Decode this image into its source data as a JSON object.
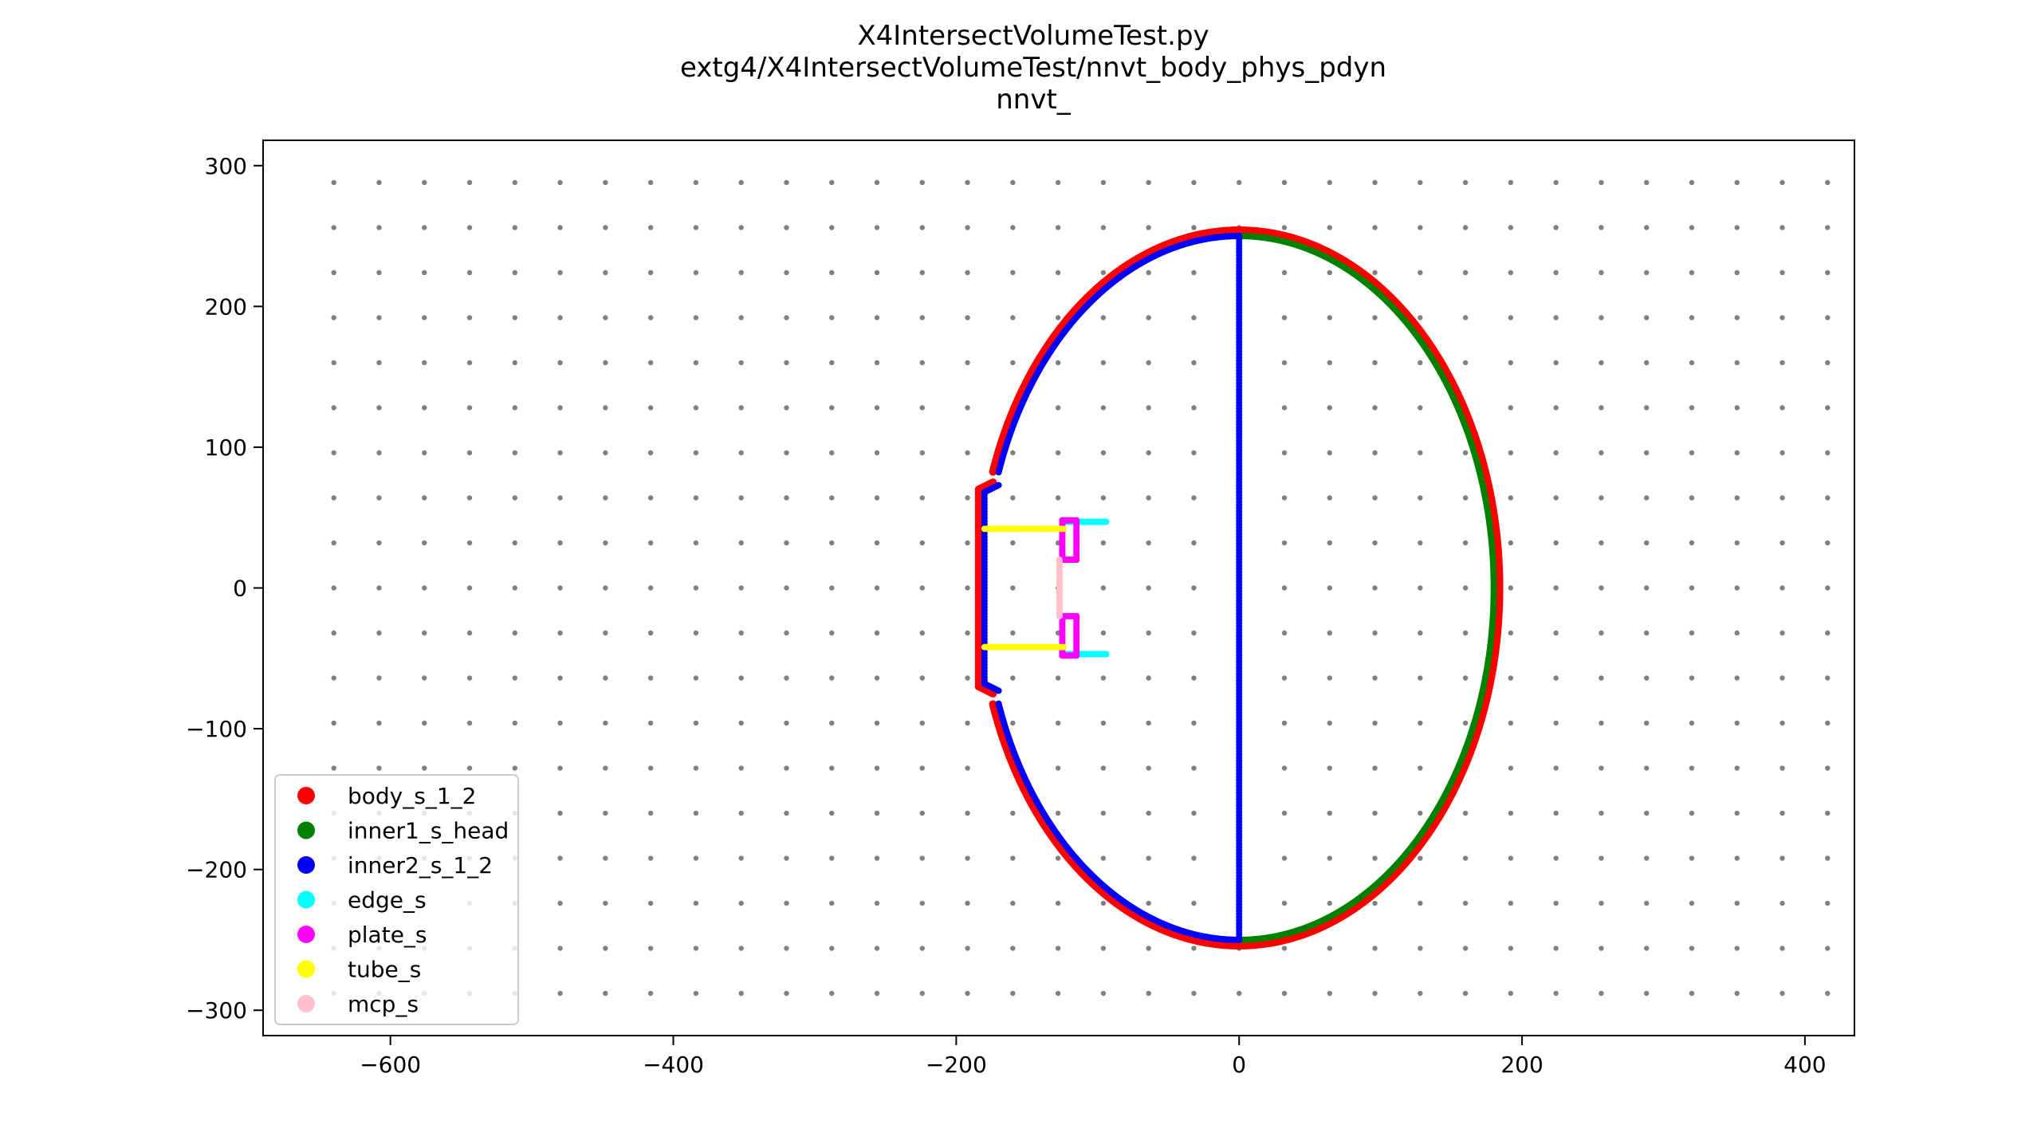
{
  "chart_data": {
    "type": "scatter",
    "title_lines": [
      "X4IntersectVolumeTest.py",
      "extg4/X4IntersectVolumeTest/nnvt_body_phys_pdyn",
      "nnvt_"
    ],
    "xlabel": "",
    "ylabel": "",
    "xlim": [
      -690,
      435
    ],
    "ylim": [
      -318,
      318
    ],
    "x_ticks": [
      -600,
      -400,
      -200,
      0,
      200,
      400
    ],
    "y_ticks": [
      300,
      200,
      100,
      0,
      -100,
      -200,
      -300
    ],
    "x_tick_labels": [
      "−600",
      "−400",
      "−200",
      "0",
      "200",
      "400"
    ],
    "y_tick_labels": [
      "300",
      "200",
      "100",
      "0",
      "−100",
      "−200",
      "−300"
    ],
    "grid": false,
    "legend_position": "lower left",
    "background_points": {
      "color": "#808080",
      "x_start": -640,
      "x_step": 32,
      "x_count": 35,
      "y_start": -288,
      "y_step": 32,
      "y_count": 19
    },
    "series": [
      {
        "name": "body_s_1_2",
        "color": "#ff0000",
        "shape": "body_outline",
        "semi_x": 184,
        "semi_y": 254,
        "neck_x": -184,
        "neck_y": 70,
        "neck_shoulder_x": -174,
        "neck_shoulder_y": 75
      },
      {
        "name": "inner1_s_head",
        "color": "#008000",
        "shape": "right_half_ellipse",
        "semi_x": 180,
        "semi_y": 250
      },
      {
        "name": "inner2_s_1_2",
        "color": "#0000ff",
        "shape": "left_outline_and_axis",
        "semi_x": 180,
        "semi_y": 250,
        "neck_x": -180,
        "neck_y": 68,
        "neck_shoulder_x": -170,
        "neck_shoulder_y": 73
      },
      {
        "name": "edge_s",
        "color": "#00ffff",
        "shape": "segments",
        "segments": [
          [
            [
              -122,
              47
            ],
            [
              -94,
              47
            ]
          ],
          [
            [
              -122,
              -47
            ],
            [
              -94,
              -47
            ]
          ]
        ]
      },
      {
        "name": "plate_s",
        "color": "#ff00ff",
        "shape": "rects",
        "rects": [
          [
            -125,
            20,
            -115,
            48
          ],
          [
            -125,
            -48,
            -115,
            -20
          ]
        ]
      },
      {
        "name": "tube_s",
        "color": "#ffff00",
        "shape": "segments",
        "segments": [
          [
            [
              -180,
              42
            ],
            [
              -124,
              42
            ]
          ],
          [
            [
              -180,
              -42
            ],
            [
              -124,
              -42
            ]
          ]
        ]
      },
      {
        "name": "mcp_s",
        "color": "#ffc0cb",
        "shape": "segments",
        "segments": [
          [
            [
              -127,
              20
            ],
            [
              -127,
              -20
            ]
          ]
        ]
      }
    ]
  }
}
